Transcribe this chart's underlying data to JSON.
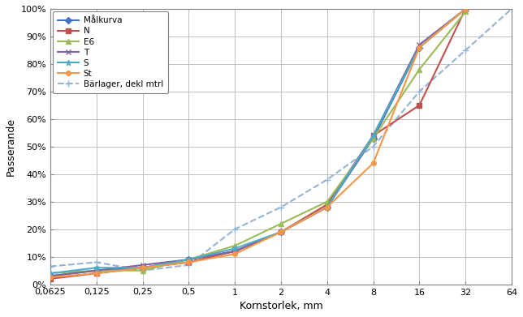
{
  "x_ticks": [
    0.0625,
    0.125,
    0.25,
    0.5,
    1,
    2,
    4,
    8,
    16,
    32,
    64
  ],
  "x_tick_labels": [
    "0,0625",
    "0,125",
    "0,25",
    "0,5",
    "1",
    "2",
    "4",
    "8",
    "16",
    "32",
    "64"
  ],
  "series": {
    "Målkurva": {
      "x": [
        0.0625,
        0.125,
        0.25,
        0.5,
        1,
        2,
        4,
        8,
        16,
        32
      ],
      "y": [
        0.03,
        0.05,
        0.06,
        0.09,
        0.12,
        0.19,
        0.28,
        0.53,
        0.86,
        1.0
      ],
      "color": "#4472C4",
      "marker": "D",
      "markersize": 4,
      "linestyle": "-",
      "linewidth": 1.5,
      "zorder": 4
    },
    "N": {
      "x": [
        0.0625,
        0.125,
        0.25,
        0.5,
        1,
        2,
        4,
        8,
        16,
        32
      ],
      "y": [
        0.02,
        0.04,
        0.06,
        0.08,
        0.12,
        0.19,
        0.29,
        0.54,
        0.65,
        1.0
      ],
      "color": "#C0504D",
      "marker": "s",
      "markersize": 4,
      "linestyle": "-",
      "linewidth": 1.5,
      "zorder": 4
    },
    "E6": {
      "x": [
        0.0625,
        0.125,
        0.25,
        0.5,
        1,
        2,
        4,
        8,
        16,
        32
      ],
      "y": [
        0.04,
        0.05,
        0.05,
        0.09,
        0.14,
        0.22,
        0.3,
        0.53,
        0.78,
        0.99
      ],
      "color": "#9BBB59",
      "marker": "^",
      "markersize": 5,
      "linestyle": "-",
      "linewidth": 1.5,
      "zorder": 4
    },
    "T": {
      "x": [
        0.0625,
        0.125,
        0.25,
        0.5,
        1,
        2,
        4,
        8,
        16,
        32
      ],
      "y": [
        0.03,
        0.05,
        0.07,
        0.09,
        0.12,
        0.19,
        0.28,
        0.54,
        0.87,
        1.0
      ],
      "color": "#8064A2",
      "marker": "x",
      "markersize": 5,
      "linestyle": "-",
      "linewidth": 1.5,
      "zorder": 4
    },
    "S": {
      "x": [
        0.0625,
        0.125,
        0.25,
        0.5,
        1,
        2,
        4,
        8,
        16,
        32
      ],
      "y": [
        0.04,
        0.06,
        0.06,
        0.09,
        0.13,
        0.19,
        0.28,
        0.54,
        0.86,
        1.0
      ],
      "color": "#4BACC6",
      "marker": "*",
      "markersize": 5,
      "linestyle": "-",
      "linewidth": 1.5,
      "zorder": 4
    },
    "St": {
      "x": [
        0.0625,
        0.125,
        0.25,
        0.5,
        1,
        2,
        4,
        8,
        16,
        32
      ],
      "y": [
        0.025,
        0.04,
        0.06,
        0.08,
        0.11,
        0.19,
        0.28,
        0.44,
        0.86,
        1.0
      ],
      "color": "#F79646",
      "marker": "o",
      "markersize": 4,
      "linestyle": "-",
      "linewidth": 1.5,
      "zorder": 4
    },
    "Bärlager, dekl mtrl": {
      "x": [
        0.0625,
        0.125,
        0.25,
        0.5,
        1,
        2,
        4,
        8,
        16,
        32,
        64
      ],
      "y": [
        0.065,
        0.08,
        0.05,
        0.07,
        0.2,
        0.28,
        0.38,
        0.5,
        0.7,
        0.85,
        1.0
      ],
      "color": "#95B3D7",
      "marker": "+",
      "markersize": 6,
      "linestyle": "--",
      "linewidth": 1.5,
      "zorder": 2
    }
  },
  "ylabel": "Passerande",
  "xlabel": "Kornstorlek, mm",
  "yticks": [
    0.0,
    0.1,
    0.2,
    0.3,
    0.4,
    0.5,
    0.6,
    0.7,
    0.8,
    0.9,
    1.0
  ],
  "ytick_labels": [
    "0%",
    "10%",
    "20%",
    "30%",
    "40%",
    "50%",
    "60%",
    "70%",
    "80%",
    "90%",
    "100%"
  ],
  "background_color": "#FFFFFF",
  "grid_color": "#C0C0C0",
  "figsize": [
    6.44,
    3.91
  ]
}
